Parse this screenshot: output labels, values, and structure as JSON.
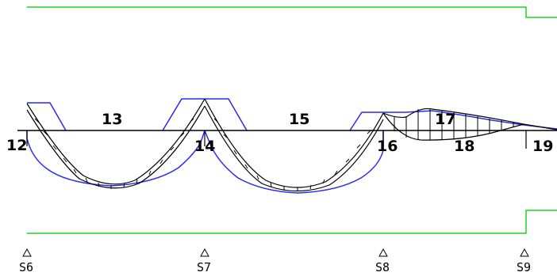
{
  "colors": {
    "background": "#ffffff",
    "beam": "#000000",
    "moment_curve": "#000000",
    "envelope": "#2a2af0",
    "boundary": "#22d022"
  },
  "node_labels": {
    "n12": "12",
    "n13": "13",
    "n14": "14",
    "n15": "15",
    "n16": "16",
    "n17": "17",
    "n18": "18",
    "n19": "19"
  },
  "supports": {
    "s6": {
      "label": "S6",
      "icon": "triangle-support-icon"
    },
    "s7": {
      "label": "S7",
      "icon": "triangle-support-icon"
    },
    "s8": {
      "label": "S8",
      "icon": "triangle-support-icon"
    },
    "s9": {
      "label": "S9",
      "icon": "triangle-support-icon"
    }
  }
}
